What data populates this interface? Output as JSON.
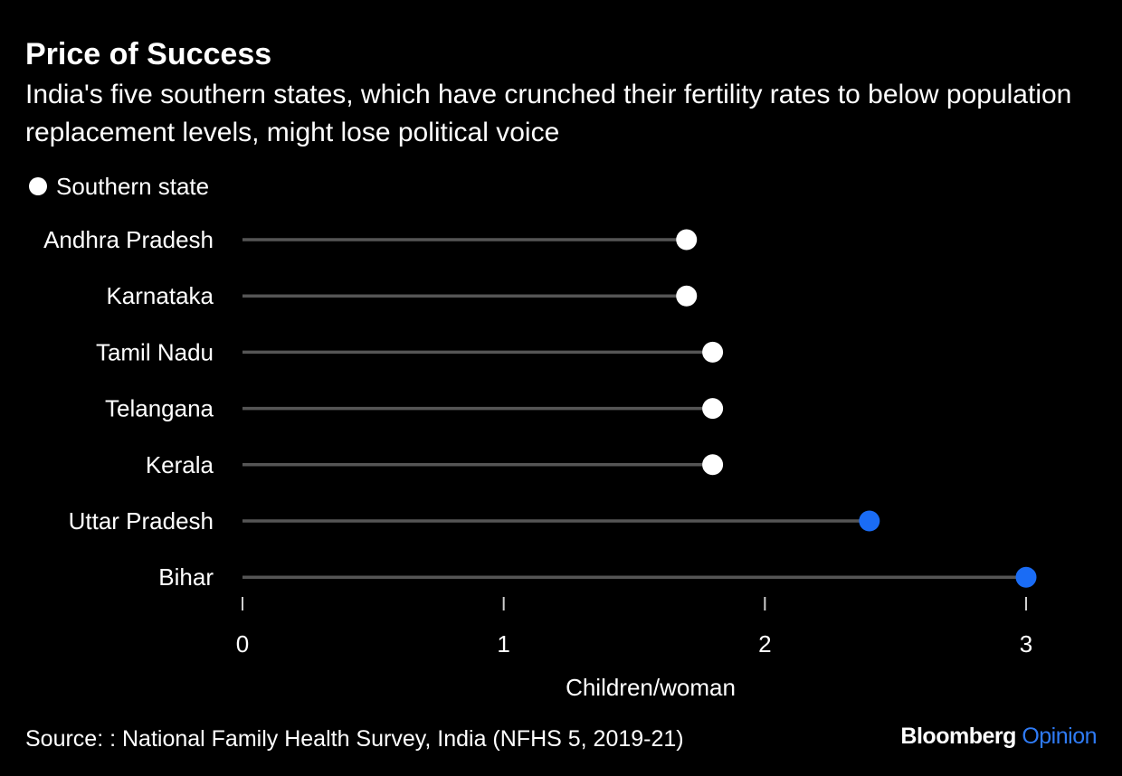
{
  "header": {
    "title": "Price of Success",
    "subtitle": "India's five southern states, which have crunched their fertility rates to below population replacement levels, might lose political voice"
  },
  "legend": {
    "label": "Southern state",
    "color": "#ffffff"
  },
  "chart_data": {
    "type": "dot",
    "orientation": "horizontal",
    "categories": [
      "Andhra Pradesh",
      "Karnataka",
      "Tamil Nadu",
      "Telangana",
      "Kerala",
      "Uttar Pradesh",
      "Bihar"
    ],
    "values": [
      1.7,
      1.7,
      1.8,
      1.8,
      1.8,
      2.4,
      3.0
    ],
    "southern": [
      true,
      true,
      true,
      true,
      true,
      false,
      false
    ],
    "colors": {
      "southern": "#ffffff",
      "other": "#1a6cf5",
      "stem": "#555555",
      "text": "#ffffff"
    },
    "xlabel": "Children/woman",
    "xlim": [
      0,
      3
    ],
    "xticks": [
      0,
      1,
      2,
      3
    ],
    "legend_position": "top-left",
    "grid": false
  },
  "footer": {
    "source": "Source: : National Family Health Survey, India (NFHS 5, 2019-21)",
    "brand_main": "Bloomberg",
    "brand_sub": "Opinion"
  }
}
